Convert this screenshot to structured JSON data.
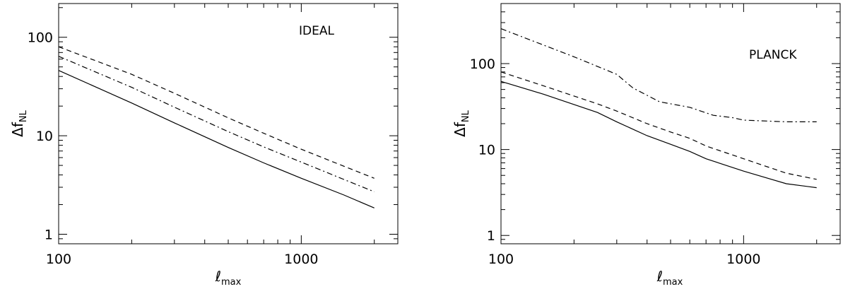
{
  "chart_data": [
    {
      "type": "line",
      "annotation": "IDEAL",
      "xlabel": {
        "main": "ℓ",
        "sub": "max"
      },
      "ylabel": {
        "main": "Δf",
        "sub": "NL"
      },
      "xscale": "log",
      "yscale": "log",
      "xlim": [
        100,
        2500
      ],
      "ylim": [
        0.8,
        220
      ],
      "x_ticks": [
        100,
        1000
      ],
      "x_tick_labels": [
        "100",
        "1000"
      ],
      "y_ticks": [
        1,
        10,
        100
      ],
      "y_tick_labels": [
        "1",
        "10",
        "100"
      ],
      "grid": false,
      "series": [
        {
          "style": "solid",
          "x": [
            100,
            200,
            300,
            500,
            700,
            1000,
            1500,
            2000
          ],
          "y": [
            46,
            21.5,
            13.5,
            7.6,
            5.3,
            3.7,
            2.5,
            1.85
          ]
        },
        {
          "style": "dashdot",
          "x": [
            100,
            200,
            300,
            500,
            700,
            1000,
            1500,
            2000
          ],
          "y": [
            64,
            31,
            19.5,
            11,
            7.7,
            5.4,
            3.6,
            2.7
          ]
        },
        {
          "style": "dashed",
          "x": [
            100,
            200,
            300,
            500,
            700,
            1000,
            1500,
            2000
          ],
          "y": [
            80,
            42,
            27,
            15.2,
            10.6,
            7.3,
            4.9,
            3.7
          ]
        }
      ]
    },
    {
      "type": "line",
      "annotation": "PLANCK",
      "xlabel": {
        "main": "ℓ",
        "sub": "max"
      },
      "ylabel": {
        "main": "Δf",
        "sub": "NL"
      },
      "xscale": "log",
      "yscale": "log",
      "xlim": [
        100,
        2500
      ],
      "ylim": [
        0.8,
        500
      ],
      "x_ticks": [
        100,
        1000
      ],
      "x_tick_labels": [
        "100",
        "1000"
      ],
      "y_ticks": [
        1,
        10,
        100
      ],
      "y_tick_labels": [
        "1",
        "10",
        "100"
      ],
      "grid": false,
      "series": [
        {
          "style": "solid",
          "x": [
            100,
            150,
            250,
            300,
            400,
            500,
            600,
            700,
            1000,
            1500,
            2000
          ],
          "y": [
            62,
            44,
            27,
            21,
            14.5,
            11.5,
            9.5,
            7.8,
            5.6,
            4.0,
            3.6
          ]
        },
        {
          "style": "dashed",
          "x": [
            100,
            150,
            250,
            300,
            400,
            500,
            600,
            700,
            1000,
            1500,
            2000
          ],
          "y": [
            80,
            55,
            34,
            28,
            20,
            16,
            13.5,
            11,
            7.8,
            5.3,
            4.5
          ]
        },
        {
          "style": "dashdot",
          "x": [
            100,
            200,
            300,
            350,
            450,
            600,
            750,
            900,
            1000,
            1500,
            2000
          ],
          "y": [
            255,
            120,
            75,
            52,
            36,
            31,
            25,
            23.5,
            22,
            21,
            21
          ]
        }
      ]
    }
  ]
}
